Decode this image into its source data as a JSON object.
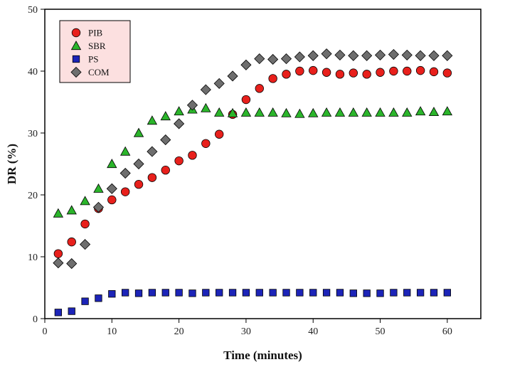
{
  "chart_data": {
    "type": "scatter",
    "xlabel": "Time (minutes)",
    "ylabel": "DR (%)",
    "xlim": [
      0,
      65
    ],
    "ylim": [
      0,
      50
    ],
    "xticks": [
      0,
      10,
      20,
      30,
      40,
      50,
      60
    ],
    "yticks": [
      0,
      10,
      20,
      30,
      40,
      50
    ],
    "legend_position": "top-left",
    "grid": false,
    "series": [
      {
        "name": "PIB",
        "marker": "circle",
        "color": "#e8201c",
        "x": [
          2,
          4,
          6,
          8,
          10,
          12,
          14,
          16,
          18,
          20,
          22,
          24,
          26,
          28,
          30,
          32,
          34,
          36,
          38,
          40,
          42,
          44,
          46,
          48,
          50,
          52,
          54,
          56,
          58,
          60
        ],
        "y": [
          10.5,
          12.4,
          15.3,
          17.8,
          19.2,
          20.5,
          21.7,
          22.8,
          24.0,
          25.5,
          26.4,
          28.3,
          29.8,
          33.0,
          35.4,
          37.2,
          38.8,
          39.5,
          40.0,
          40.1,
          39.8,
          39.5,
          39.7,
          39.5,
          39.8,
          40.0,
          40.0,
          40.1,
          39.9,
          39.7
        ]
      },
      {
        "name": "SBR",
        "marker": "triangle",
        "color": "#2bb52b",
        "x": [
          2,
          4,
          6,
          8,
          10,
          12,
          14,
          16,
          18,
          20,
          22,
          24,
          26,
          28,
          30,
          32,
          34,
          36,
          38,
          40,
          42,
          44,
          46,
          48,
          50,
          52,
          54,
          56,
          58,
          60
        ],
        "y": [
          17.0,
          17.5,
          19.0,
          21.0,
          25.0,
          27.0,
          30.0,
          32.0,
          32.7,
          33.5,
          33.8,
          34.0,
          33.3,
          33.2,
          33.3,
          33.3,
          33.3,
          33.2,
          33.1,
          33.2,
          33.3,
          33.3,
          33.3,
          33.3,
          33.3,
          33.3,
          33.3,
          33.5,
          33.4,
          33.5
        ]
      },
      {
        "name": "PS",
        "marker": "square",
        "color": "#1c24b8",
        "x": [
          2,
          4,
          6,
          8,
          10,
          12,
          14,
          16,
          18,
          20,
          22,
          24,
          26,
          28,
          30,
          32,
          34,
          36,
          38,
          40,
          42,
          44,
          46,
          48,
          50,
          52,
          54,
          56,
          58,
          60
        ],
        "y": [
          1.0,
          1.2,
          2.8,
          3.3,
          4.0,
          4.2,
          4.1,
          4.2,
          4.2,
          4.2,
          4.1,
          4.2,
          4.2,
          4.2,
          4.2,
          4.2,
          4.2,
          4.2,
          4.2,
          4.2,
          4.2,
          4.2,
          4.1,
          4.1,
          4.1,
          4.2,
          4.2,
          4.2,
          4.2,
          4.2
        ]
      },
      {
        "name": "COM",
        "marker": "diamond",
        "color": "#6e6e6e",
        "x": [
          2,
          4,
          6,
          8,
          10,
          12,
          14,
          16,
          18,
          20,
          22,
          24,
          26,
          28,
          30,
          32,
          34,
          36,
          38,
          40,
          42,
          44,
          46,
          48,
          50,
          52,
          54,
          56,
          58,
          60
        ],
        "y": [
          9.0,
          8.9,
          12.0,
          18.0,
          21.0,
          23.5,
          25.0,
          27.0,
          28.9,
          31.5,
          34.5,
          37.0,
          38.0,
          39.2,
          41.0,
          42.0,
          41.9,
          42.0,
          42.3,
          42.5,
          42.8,
          42.6,
          42.5,
          42.5,
          42.6,
          42.7,
          42.6,
          42.5,
          42.5,
          42.5
        ]
      }
    ]
  }
}
